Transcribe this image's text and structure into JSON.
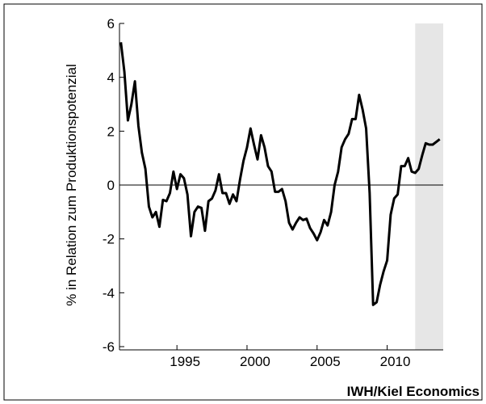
{
  "chart_data": {
    "type": "line",
    "ylabel": "% in Relation zum Produktionspotenzial",
    "source": "IWH/Kiel Economics",
    "xlim": [
      1990.9,
      2014.0
    ],
    "xticks": [
      1995,
      2000,
      2005,
      2010
    ],
    "ylim": [
      -6,
      6
    ],
    "yticks": [
      -6,
      -4,
      -2,
      0,
      2,
      4,
      6
    ],
    "shaded_range": [
      2012,
      2014
    ],
    "x": [
      1991,
      1991.25,
      1991.5,
      1991.75,
      1992,
      1992.25,
      1992.5,
      1992.75,
      1993,
      1993.25,
      1993.5,
      1993.75,
      1994,
      1994.25,
      1994.5,
      1994.75,
      1995,
      1995.25,
      1995.5,
      1995.75,
      1996,
      1996.25,
      1996.5,
      1996.75,
      1997,
      1997.25,
      1997.5,
      1997.75,
      1998,
      1998.25,
      1998.5,
      1998.75,
      1999,
      1999.25,
      1999.5,
      1999.75,
      2000,
      2000.25,
      2000.5,
      2000.75,
      2001,
      2001.25,
      2001.5,
      2001.75,
      2002,
      2002.25,
      2002.5,
      2002.75,
      2003,
      2003.25,
      2003.5,
      2003.75,
      2004,
      2004.25,
      2004.5,
      2004.75,
      2005,
      2005.25,
      2005.5,
      2005.75,
      2006,
      2006.25,
      2006.5,
      2006.75,
      2007,
      2007.25,
      2007.5,
      2007.75,
      2008,
      2008.25,
      2008.5,
      2008.75,
      2009,
      2009.25,
      2009.5,
      2009.75,
      2010,
      2010.25,
      2010.5,
      2010.75,
      2011,
      2011.25,
      2011.5,
      2011.75,
      2012,
      2012.25,
      2012.5,
      2012.75,
      2013,
      2013.25,
      2013.5,
      2013.75
    ],
    "series": [
      {
        "color": "#000000",
        "values": [
          5.3,
          4.2,
          2.4,
          3.0,
          3.85,
          2.2,
          1.2,
          0.6,
          -0.8,
          -1.2,
          -1.0,
          -1.55,
          -0.55,
          -0.6,
          -0.3,
          0.5,
          -0.15,
          0.4,
          0.25,
          -0.35,
          -1.9,
          -1.0,
          -0.8,
          -0.85,
          -1.7,
          -0.6,
          -0.5,
          -0.2,
          0.4,
          -0.3,
          -0.3,
          -0.7,
          -0.35,
          -0.6,
          0.2,
          0.9,
          1.4,
          2.1,
          1.5,
          0.95,
          1.85,
          1.4,
          0.7,
          0.5,
          -0.25,
          -0.25,
          -0.15,
          -0.6,
          -1.4,
          -1.65,
          -1.4,
          -1.2,
          -1.3,
          -1.25,
          -1.6,
          -1.8,
          -2.05,
          -1.75,
          -1.3,
          -1.5,
          -1.0,
          0.0,
          0.5,
          1.4,
          1.7,
          1.9,
          2.45,
          2.45,
          3.35,
          2.8,
          2.1,
          -0.3,
          -4.45,
          -4.35,
          -3.7,
          -3.2,
          -2.8,
          -1.1,
          -0.5,
          -0.35,
          0.7,
          0.7,
          1.0,
          0.5,
          0.45,
          0.6,
          1.1,
          1.55,
          1.5,
          1.5,
          1.6,
          1.7
        ]
      }
    ]
  }
}
